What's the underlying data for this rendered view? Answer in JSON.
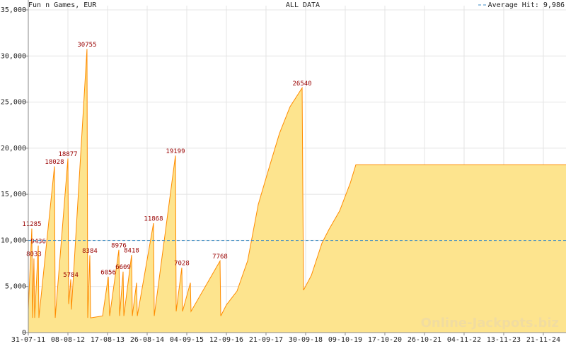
{
  "chart_data": {
    "type": "area",
    "title": "Fun n Games, EUR",
    "subtitle": "ALL DATA",
    "watermark": "Online-Jackpots.biz",
    "color": "#ff8c00",
    "fill": "#fde48e",
    "x": [
      0,
      33,
      40,
      53,
      60,
      94,
      100,
      247,
      254,
      374,
      381,
      401,
      407,
      554,
      561,
      581,
      588,
      701,
      755,
      768,
      855,
      862,
      895,
      902,
      975,
      982,
      1022,
      1029,
      1182,
      1189,
      1389,
      1396,
      1449,
      1456,
      1530,
      1536,
      1810,
      1817,
      1870,
      1970,
      2071,
      2171,
      2271,
      2371,
      2471,
      2585,
      2598,
      2672,
      2772,
      2839,
      2939,
      3039,
      3092,
      5076
    ],
    "values": [
      2500,
      11285,
      1600,
      8033,
      1600,
      9436,
      1600,
      18028,
      1600,
      18877,
      3100,
      5784,
      2500,
      30755,
      1600,
      8384,
      1600,
      1800,
      6056,
      1800,
      8976,
      1800,
      6609,
      1800,
      8418,
      1800,
      5400,
      1800,
      11868,
      1800,
      19199,
      2300,
      7028,
      2300,
      5400,
      2300,
      7768,
      1800,
      3000,
      4500,
      7800,
      13900,
      17800,
      21600,
      24500,
      26540,
      4600,
      6200,
      9700,
      11200,
      13200,
      16200,
      18200,
      18200
    ],
    "value_labels": [
      null,
      "11285",
      null,
      "8033",
      null,
      "9436",
      null,
      "18028",
      null,
      "18877",
      null,
      "5784",
      null,
      "30755",
      null,
      "8384",
      null,
      null,
      "6056",
      null,
      "8976",
      null,
      "6609",
      null,
      "8418",
      null,
      null,
      null,
      "11868",
      null,
      "19199",
      null,
      "7028",
      null,
      null,
      null,
      "7768",
      null,
      null,
      null,
      null,
      null,
      null,
      null,
      null,
      "26540",
      null,
      null,
      null,
      null,
      null,
      null,
      null,
      null
    ],
    "reference_line": {
      "value": 9986,
      "label": "Average Hit: 9,986",
      "color": "#3a8ac4"
    },
    "xlim": [
      0,
      5076
    ],
    "xticks": [
      {
        "value": 0,
        "label": "31-07-11"
      },
      {
        "value": 374,
        "label": "08-08-12"
      },
      {
        "value": 748,
        "label": "17-08-13"
      },
      {
        "value": 1122,
        "label": "26-08-14"
      },
      {
        "value": 1496,
        "label": "04-09-15"
      },
      {
        "value": 1870,
        "label": "12-09-16"
      },
      {
        "value": 2244,
        "label": "21-09-17"
      },
      {
        "value": 2618,
        "label": "30-09-18"
      },
      {
        "value": 2992,
        "label": "09-10-19"
      },
      {
        "value": 3366,
        "label": "17-10-20"
      },
      {
        "value": 3740,
        "label": "26-10-21"
      },
      {
        "value": 4114,
        "label": "04-11-22"
      },
      {
        "value": 4488,
        "label": "13-11-23"
      },
      {
        "value": 4862,
        "label": "21-11-24"
      }
    ],
    "ylim": [
      0,
      35000
    ],
    "yticks": [
      0,
      {
        "value": 5000,
        "label": "5,000"
      },
      {
        "value": 10000,
        "label": "10,000"
      },
      {
        "value": 15000,
        "label": "15,000"
      },
      {
        "value": 20000,
        "label": "20,000"
      },
      {
        "value": 25000,
        "label": "25,000"
      },
      {
        "value": 30000,
        "label": "30,000"
      },
      {
        "value": 35000,
        "label": "35,000"
      }
    ],
    "grid": true
  }
}
